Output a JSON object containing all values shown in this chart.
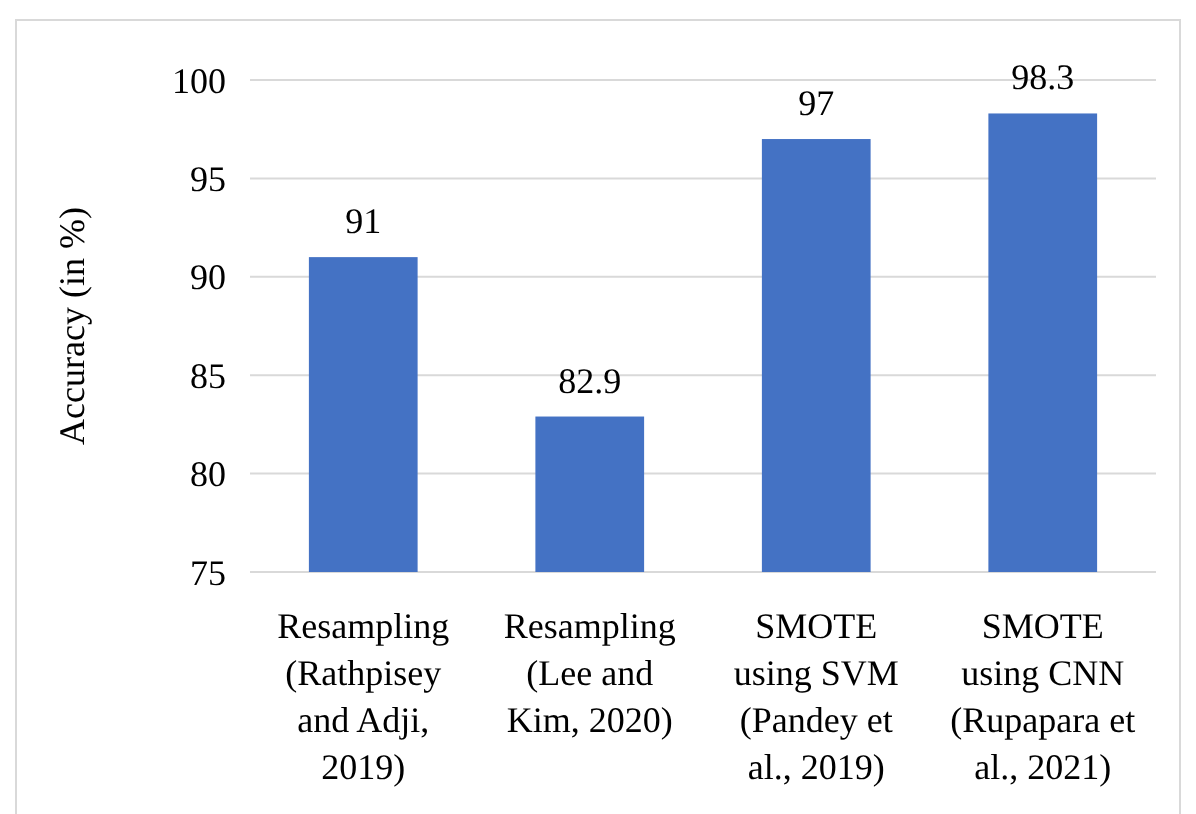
{
  "chart_data": {
    "type": "bar",
    "ylabel": "Accuracy (in %)",
    "categories": [
      "Resampling\n(Rathpisey\nand Adji,\n2019)",
      "Resampling\n(Lee and\nKim, 2020)",
      "SMOTE\nusing SVM\n(Pandey et\nal., 2019)",
      "SMOTE\nusing CNN\n(Rupapara et\nal., 2021)"
    ],
    "values": [
      91,
      82.9,
      97,
      98.3
    ],
    "color": "#4472c4",
    "data_labels": true,
    "ylim": [
      75,
      100
    ],
    "yticks": [
      75,
      80,
      85,
      90,
      95,
      100
    ],
    "grid": "y"
  }
}
